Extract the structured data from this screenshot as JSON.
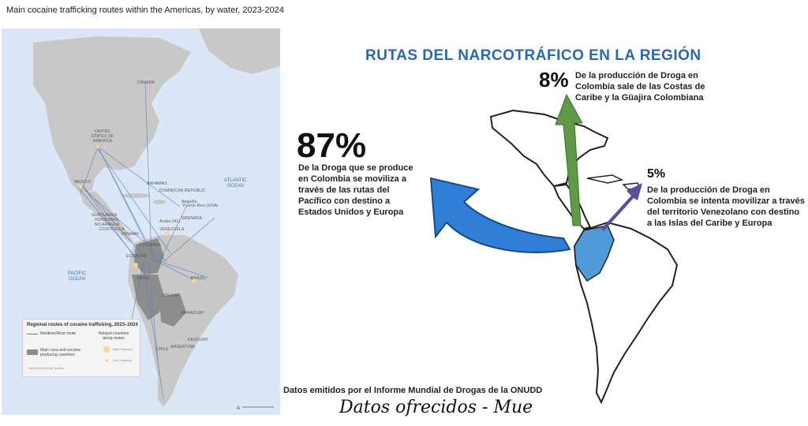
{
  "left": {
    "title": "Main cocaine trafficking routes within the Americas, by water, 2023-2024",
    "countries": [
      "CANADA",
      "UNITED STATES OF AMERICA",
      "MEXICO",
      "BAHAMAS",
      "DOMINICAN REPUBLIC",
      "GUATEMALA",
      "HONDURAS",
      "NICARAGUA",
      "COSTA RICA",
      "PANAMA",
      "VENEZUELA",
      "GRENADA",
      "COLOMBIA",
      "ECUADOR",
      "PERU",
      "BOLIVIA",
      "BRAZIL",
      "PARAGUAY",
      "URUGUAY",
      "ARGENTINA",
      "CHILE"
    ],
    "territories": [
      "Anguilla",
      "Puerto Rico (USA)",
      "Aruba (NL)"
    ],
    "oceans": [
      "ATLANTIC\nOCEAN",
      "PACIFIC\nOCEAN"
    ],
    "legend": {
      "title": "Regional routes of cocaine trafficking, 2023–2024",
      "maritime": "Maritime/River route",
      "hotspot": "Hotspot countries\nalong routes",
      "producers": "Main coca and cocaine\nproducing countries",
      "high": "High Frequency",
      "low": "Low Frequency",
      "note": "* Non Self-Governing Territory"
    },
    "colors": {
      "ocean": "#dbe6f7",
      "land": "#c8c8c8",
      "producers": "#8c8c8c",
      "routes": "#5b7fb8"
    }
  },
  "right": {
    "title": "RUTAS DEL NARCOTRÁFICO EN LA REGIÓN",
    "pct_pacific": "87%",
    "text_pacific": "De la Droga que se produce en Colombia se moviliza a través de las rutas del Pacífico con destino a Estados Unidos y Europa",
    "pct_caribe": "8%",
    "text_caribe": "De la producción de Droga en Colombia sale de las Costas de Caribe y la Güajira Colombiana",
    "pct_venezuela": "5%",
    "text_venezuela": "De la producción de Droga en Colombia se intenta movilizar a través del territorio Venezolano con destino a las Islas del Caribe y Europa",
    "source": "Datos emitidos por el Informe Mundial de Drogas de la ONUDD",
    "signature": "Datos ofrecidos - Mue",
    "colors": {
      "blue_arrow": "#2f7fd6",
      "green_arrow": "#5e9a48",
      "purple_arrow": "#5a4f9a",
      "highlight": "#4f9ad8",
      "title": "#2b67b0"
    }
  }
}
